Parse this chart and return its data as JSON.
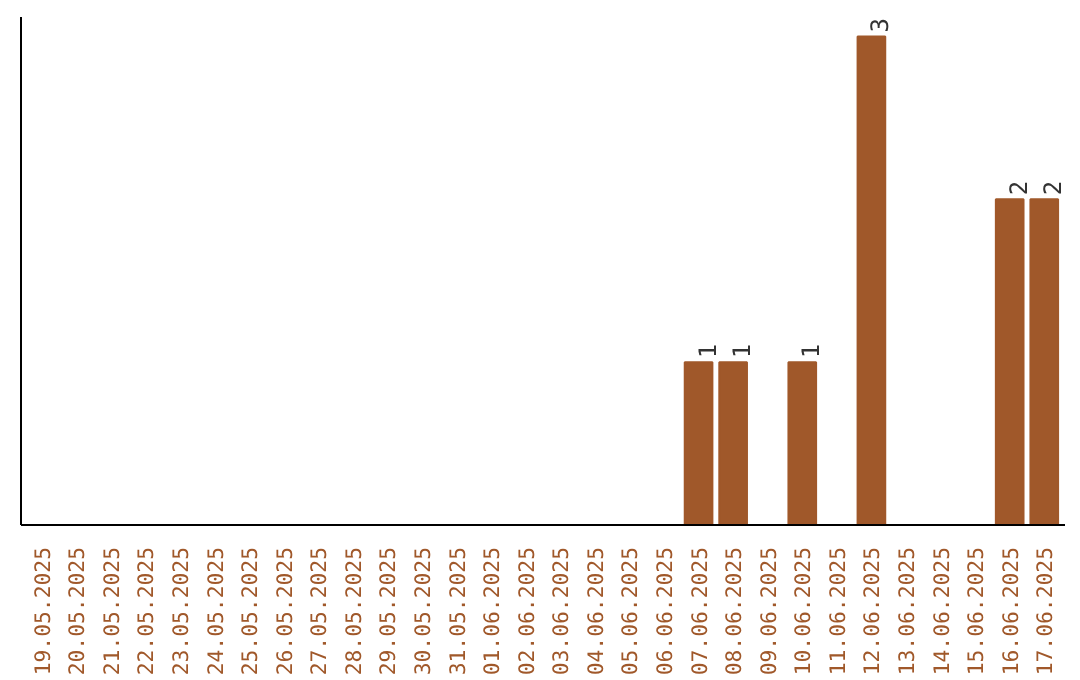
{
  "chart_data": {
    "type": "bar",
    "categories": [
      "19.05.2025",
      "20.05.2025",
      "21.05.2025",
      "22.05.2025",
      "23.05.2025",
      "24.05.2025",
      "25.05.2025",
      "26.05.2025",
      "27.05.2025",
      "28.05.2025",
      "29.05.2025",
      "30.05.2025",
      "31.05.2025",
      "01.06.2025",
      "02.06.2025",
      "03.06.2025",
      "04.06.2025",
      "05.06.2025",
      "06.06.2025",
      "07.06.2025",
      "08.06.2025",
      "09.06.2025",
      "10.06.2025",
      "11.06.2025",
      "12.06.2025",
      "13.06.2025",
      "14.06.2025",
      "15.06.2025",
      "16.06.2025",
      "17.06.2025"
    ],
    "values": [
      null,
      null,
      null,
      null,
      null,
      null,
      null,
      null,
      null,
      null,
      null,
      null,
      null,
      null,
      null,
      null,
      null,
      null,
      null,
      1,
      1,
      null,
      1,
      null,
      3,
      null,
      null,
      null,
      2,
      2
    ],
    "data_labels": true,
    "color": "#a0582a",
    "tick_labels": "x"
  }
}
